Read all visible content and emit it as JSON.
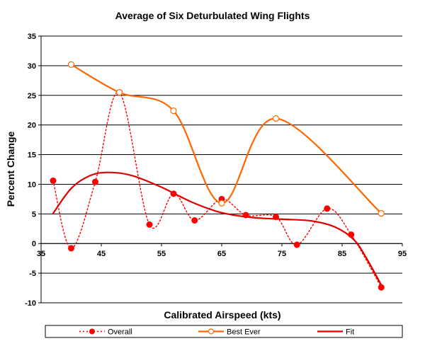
{
  "chart_data": {
    "type": "line",
    "title": "Average of Six Deturbulated Wing Flights",
    "xlabel": "Calibrated Airspeed (kts)",
    "ylabel": "Percent Change",
    "xlim": [
      35,
      95
    ],
    "ylim": [
      -10,
      35
    ],
    "xticks": [
      35,
      45,
      55,
      65,
      75,
      85,
      95
    ],
    "yticks": [
      -10,
      -5,
      0,
      5,
      10,
      15,
      20,
      25,
      30,
      35
    ],
    "grid": "horizontal",
    "legend_position": "bottom",
    "series": [
      {
        "name": "Overall",
        "color": "#ff0000",
        "style": "dotted-smooth",
        "marker": "filled-circle",
        "x": [
          37,
          40,
          44,
          48,
          53,
          57,
          60.5,
          65,
          69,
          74,
          77.5,
          82.5,
          86.5,
          91.5
        ],
        "y": [
          10.6,
          -0.8,
          10.4,
          25.5,
          3.2,
          8.4,
          3.9,
          7.5,
          4.8,
          4.5,
          -0.2,
          5.9,
          1.5,
          -7.4
        ]
      },
      {
        "name": "Best Ever",
        "color": "#ff6600",
        "style": "solid-smooth",
        "marker": "open-circle",
        "x": [
          40,
          48,
          57,
          65,
          74,
          91.5
        ],
        "y": [
          30.2,
          25.5,
          22.4,
          6.8,
          21.1,
          5.1
        ]
      },
      {
        "name": "Fit",
        "color": "#dd0000",
        "style": "solid-smooth",
        "marker": "none",
        "x": [
          37,
          40,
          43,
          46,
          50,
          55,
          60,
          65,
          70,
          75,
          80,
          84,
          87,
          89,
          91.5
        ],
        "y": [
          5.1,
          9.3,
          11.4,
          12.0,
          11.5,
          9.5,
          7.0,
          5.2,
          4.4,
          4.1,
          3.8,
          2.7,
          0.6,
          -2.4,
          -7.0
        ]
      }
    ]
  }
}
